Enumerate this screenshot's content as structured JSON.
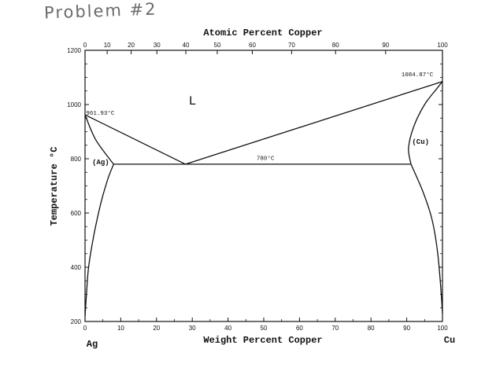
{
  "note": {
    "title": "Problem #2"
  },
  "chart_data": {
    "type": "line",
    "title": "",
    "xlabel": "Weight Percent Copper",
    "x2label": "Atomic Percent Copper",
    "ylabel": "Temperature °C",
    "xlim": [
      0,
      100
    ],
    "ylim": [
      200,
      1200
    ],
    "x_ticks": [
      0,
      10,
      20,
      30,
      40,
      50,
      60,
      70,
      80,
      90,
      100
    ],
    "y_ticks": [
      200,
      400,
      600,
      800,
      1000,
      1200
    ],
    "x2_ticks": [
      0,
      10,
      20,
      30,
      40,
      50,
      60,
      70,
      80,
      90,
      100
    ],
    "x2_positions_wt": [
      0,
      6.2,
      12.9,
      20.1,
      28.2,
      37.0,
      46.8,
      57.8,
      70.1,
      84.1,
      100
    ],
    "end_labels": {
      "left": "Ag",
      "right": "Cu"
    },
    "eutectic_temp": 780,
    "series": [
      {
        "name": "",
        "x": [
          0,
          28.1
        ],
        "y": [
          961.93,
          780
        ]
      },
      {
        "name": "",
        "x": [
          28.1,
          100
        ],
        "y": [
          780,
          1084.87
        ]
      },
      {
        "name": "",
        "x": [
          8.0,
          91.2
        ],
        "y": [
          780,
          780
        ]
      },
      {
        "name": "",
        "x": [
          0,
          3.0,
          8.0
        ],
        "y": [
          961.93,
          870,
          780
        ]
      },
      {
        "name": "",
        "x": [
          0,
          0.4,
          1.0,
          2.5,
          4.5,
          6.5,
          8.0
        ],
        "y": [
          220,
          300,
          400,
          520,
          640,
          730,
          780
        ]
      },
      {
        "name": "",
        "x": [
          91.2,
          90.5,
          92.0,
          95.0,
          98.5,
          100
        ],
        "y": [
          780,
          840,
          920,
          1000,
          1060,
          1084.87
        ]
      },
      {
        "name": "",
        "x": [
          91.2,
          94.5,
          97.0,
          98.6,
          99.5,
          100
        ],
        "y": [
          780,
          680,
          580,
          460,
          330,
          230
        ]
      }
    ],
    "annotations": [
      {
        "text": "L",
        "x": 29,
        "y": 1000
      },
      {
        "text": "961.93°C",
        "x": 0.3,
        "y": 962
      },
      {
        "text": "1084.87°C",
        "x": 88.5,
        "y": 1105
      },
      {
        "text": "780°C",
        "x": 48,
        "y": 796
      },
      {
        "text": "(Ag)",
        "x": 2,
        "y": 780
      },
      {
        "text": "(Cu)",
        "x": 91.5,
        "y": 855
      }
    ]
  }
}
